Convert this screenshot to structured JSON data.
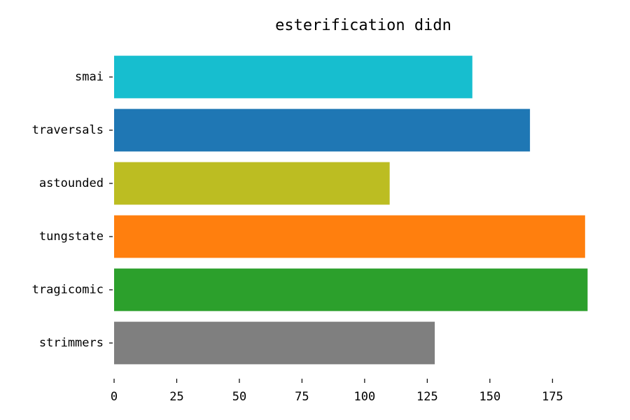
{
  "chart_data": {
    "type": "bar",
    "orientation": "horizontal",
    "title": "esterification didn",
    "xlabel": "",
    "ylabel": "",
    "categories": [
      "smai",
      "traversals",
      "astounded",
      "tungstate",
      "tragicomic",
      "strimmers"
    ],
    "values": [
      143,
      166,
      110,
      188,
      189,
      128
    ],
    "colors": [
      "#17becf",
      "#1f77b4",
      "#bcbd22",
      "#ff7f0e",
      "#2ca02c",
      "#7f7f7f"
    ],
    "xlim": [
      0,
      190
    ],
    "xticks": [
      0,
      25,
      50,
      75,
      100,
      125,
      150,
      175
    ],
    "grid": false
  }
}
